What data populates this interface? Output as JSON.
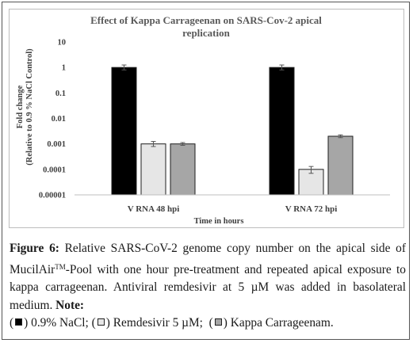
{
  "chart_data": {
    "type": "bar",
    "title": "Effect of Kappa Carrageenan on SARS-Cov-2 apical replication",
    "title_lines": [
      "Effect of Kappa Carrageenan on SARS-Cov-2 apical",
      "replication"
    ],
    "ylabel_lines": [
      "Fold change",
      "(Relative to 0.9 % NaCl Control)"
    ],
    "xlabel": "Time in hours",
    "scale": "log",
    "ylim": [
      1e-05,
      10
    ],
    "y_ticks": [
      "10",
      "1",
      "0.1",
      "0.01",
      "0.001",
      "0.0001",
      "0.00001"
    ],
    "categories": [
      "V RNA 48 hpi",
      "V RNA 72 hpi"
    ],
    "grid": false,
    "series": [
      {
        "name": "0.9% NaCl",
        "color": "#000000",
        "values": [
          1,
          1
        ],
        "err_low": [
          0.8,
          0.8
        ],
        "err_high": [
          1.25,
          1.25
        ]
      },
      {
        "name": "Remdesivir 5 µM",
        "color": "#e6e6e6",
        "values": [
          0.001,
          0.0001
        ],
        "err_low": [
          0.00079,
          7e-05
        ],
        "err_high": [
          0.00125,
          0.00013
        ]
      },
      {
        "name": "Kappa Carrageenam",
        "color": "#a6a6a6",
        "values": [
          0.001,
          0.002
        ],
        "err_low": [
          0.00088,
          0.00176
        ],
        "err_high": [
          0.00113,
          0.00226
        ]
      }
    ]
  },
  "caption": {
    "label": "Figure 6:",
    "text": " Relative SARS-CoV-2 genome copy number on the apical side of MucilAir",
    "tm": "TM",
    "text2": "-Pool with one hour pre-treatment and repeated apical exposure to kappa carrageenan. Antiviral remdesivir at 5 µM was added in basolateral medium. ",
    "note_label": "Note:",
    "legend": [
      {
        "label": "0.9% NaCl;",
        "color": "#000000"
      },
      {
        "label": "Remdesivir 5 µM;",
        "color": "#e6e6e6"
      },
      {
        "label": "Kappa Carrageenam.",
        "color": "#a6a6a6"
      }
    ]
  }
}
